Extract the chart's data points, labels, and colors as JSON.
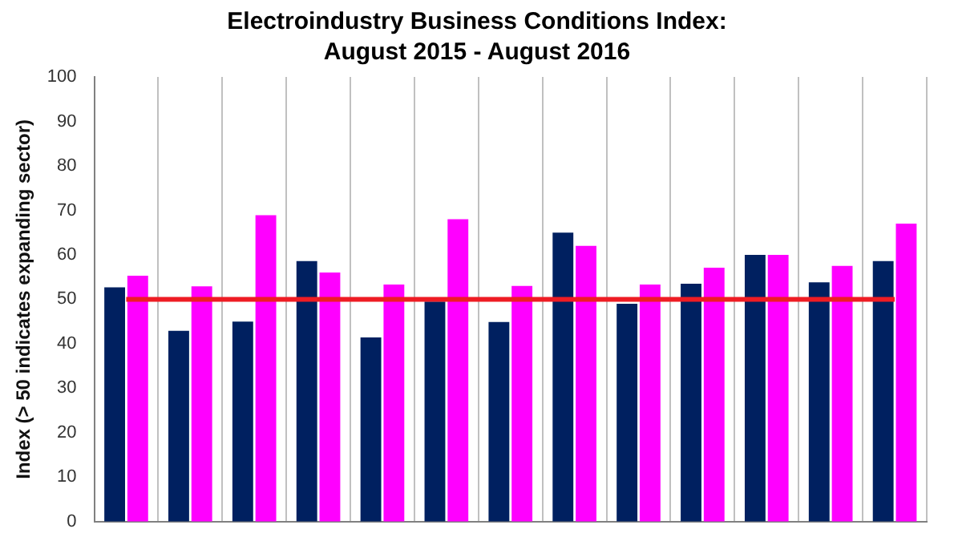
{
  "chart_data": {
    "type": "bar",
    "title": "Electroindustry Business Conditions Index:\nAugust 2015 - August 2016",
    "ylabel": "Index (> 50 indicates expanding sector)",
    "categories": [
      null,
      null,
      null,
      null,
      null,
      null,
      null,
      null,
      null,
      null,
      null,
      null,
      null
    ],
    "series": [
      {
        "color": "#002060",
        "values": [
          52.7,
          42.9,
          45,
          58.6,
          41.4,
          49.5,
          44.9,
          65,
          49,
          53.5,
          60,
          53.8,
          58.6
        ]
      },
      {
        "color": "#ff00ff",
        "values": [
          55.3,
          52.9,
          68.9,
          56,
          53.3,
          68,
          53,
          62,
          53.3,
          57.1,
          60,
          57.5,
          67
        ]
      }
    ],
    "ylim": [
      0,
      100
    ],
    "yticks": [
      0,
      10,
      20,
      30,
      40,
      50,
      60,
      70,
      80,
      90,
      100
    ],
    "grid": "x",
    "legend": false,
    "ref_lines": [
      {
        "axis": "y",
        "value": 50,
        "color": "#ee1c24"
      }
    ]
  }
}
